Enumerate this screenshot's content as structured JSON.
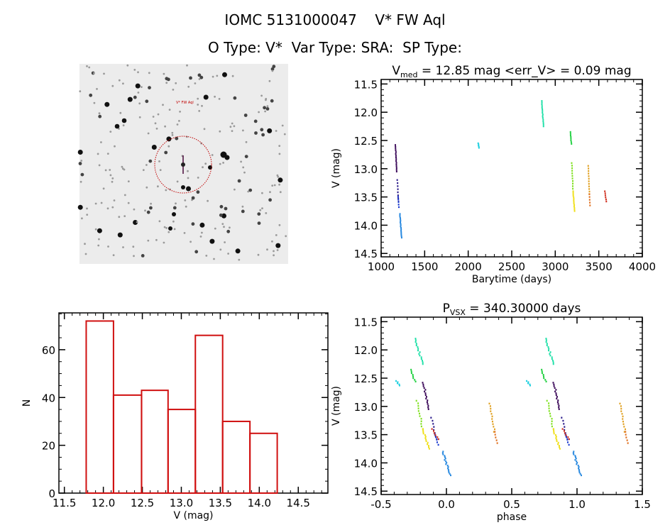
{
  "header": {
    "title": "IOMC 5131000047    V* FW Aql",
    "subtitle": "O Type: V*  Var Type: SRA:  SP Type:"
  },
  "finder_chart": {
    "target_label": "V* FW Aql",
    "marker_color": "#c00000"
  },
  "chart_data": [
    {
      "id": "light_curve",
      "type": "scatter",
      "title_main": "V",
      "title_sub": "med",
      "title_rest": " = 12.85 mag <err_V> = 0.09 mag",
      "xlabel": "Barytime (days)",
      "ylabel": "V (mag)",
      "xlim": [
        1000,
        4000
      ],
      "ylim": [
        14.56,
        11.42
      ],
      "xticks": [
        "1000",
        "1500",
        "2000",
        "2500",
        "3000",
        "3500",
        "4000"
      ],
      "xtick_values": [
        1000,
        1500,
        2000,
        2500,
        3000,
        3500,
        4000
      ],
      "yticks": [
        "11.5",
        "12.0",
        "12.5",
        "13.0",
        "13.5",
        "14.0",
        "14.5"
      ],
      "ytick_values": [
        11.5,
        12.0,
        12.5,
        13.0,
        13.5,
        14.0,
        14.5
      ],
      "segments": [
        {
          "t": [
            1165,
            1178
          ],
          "v": [
            12.58,
            13.05
          ],
          "n": 16,
          "color": "#3c0a5a"
        },
        {
          "t": [
            1185,
            1198
          ],
          "v": [
            13.2,
            13.58
          ],
          "n": 8,
          "color": "#2a1a8a"
        },
        {
          "t": [
            1195,
            1205
          ],
          "v": [
            13.5,
            13.68
          ],
          "n": 5,
          "color": "#1a3ad0"
        },
        {
          "t": [
            1215,
            1235
          ],
          "v": [
            13.8,
            14.22
          ],
          "n": 18,
          "color": "#2a8ae0"
        },
        {
          "t": [
            2115,
            2125
          ],
          "v": [
            12.55,
            12.63
          ],
          "n": 5,
          "color": "#20d0e0"
        },
        {
          "t": [
            2845,
            2865
          ],
          "v": [
            11.8,
            12.25
          ],
          "n": 16,
          "color": "#20e0a8"
        },
        {
          "t": [
            3175,
            3185
          ],
          "v": [
            12.35,
            12.56
          ],
          "n": 8,
          "color": "#20d040"
        },
        {
          "t": [
            3190,
            3205
          ],
          "v": [
            12.9,
            13.4
          ],
          "n": 12,
          "color": "#80e020"
        },
        {
          "t": [
            3205,
            3222
          ],
          "v": [
            13.4,
            13.75
          ],
          "n": 14,
          "color": "#f0e020"
        },
        {
          "t": [
            3380,
            3392
          ],
          "v": [
            12.95,
            13.45
          ],
          "n": 12,
          "color": "#e0a020"
        },
        {
          "t": [
            3393,
            3400
          ],
          "v": [
            13.45,
            13.65
          ],
          "n": 5,
          "color": "#e07020"
        },
        {
          "t": [
            3570,
            3585
          ],
          "v": [
            13.4,
            13.58
          ],
          "n": 6,
          "color": "#d03020"
        }
      ]
    },
    {
      "id": "phase_curve",
      "type": "scatter",
      "title_main": "P",
      "title_sub": "VSX",
      "title_rest": " = 340.30000 days",
      "period": 340.3,
      "epoch": 1905.6,
      "xlabel": "phase",
      "ylabel": "V (mag)",
      "xlim": [
        -0.5,
        1.5
      ],
      "ylim": [
        14.56,
        11.42
      ],
      "xticks": [
        "-0.5",
        "0.0",
        "0.5",
        "1.0",
        "1.5"
      ],
      "xtick_values": [
        -0.5,
        0,
        0.5,
        1.0,
        1.5
      ],
      "yticks": [
        "11.5",
        "12.0",
        "12.5",
        "13.0",
        "13.5",
        "14.0",
        "14.5"
      ],
      "ytick_values": [
        11.5,
        12.0,
        12.5,
        13.0,
        13.5,
        14.0,
        14.5
      ]
    },
    {
      "id": "histogram",
      "type": "bar",
      "xlabel": "V (mag)",
      "ylabel": "N",
      "xlim": [
        11.43,
        14.88
      ],
      "ylim": [
        0,
        75.4
      ],
      "bin_edges": [
        11.78,
        12.13,
        12.49,
        12.83,
        13.18,
        13.53,
        13.88,
        14.23
      ],
      "values": [
        72,
        41,
        43,
        35,
        66,
        30,
        25
      ],
      "color": "#d01010",
      "xticks": [
        "11.5",
        "12.0",
        "12.5",
        "13.0",
        "13.5",
        "14.0",
        "14.5"
      ],
      "xtick_values": [
        11.5,
        12.0,
        12.5,
        13.0,
        13.5,
        14.0,
        14.5
      ],
      "yticks": [
        "0",
        "20",
        "40",
        "60"
      ],
      "ytick_values": [
        0,
        20,
        40,
        60
      ]
    }
  ]
}
